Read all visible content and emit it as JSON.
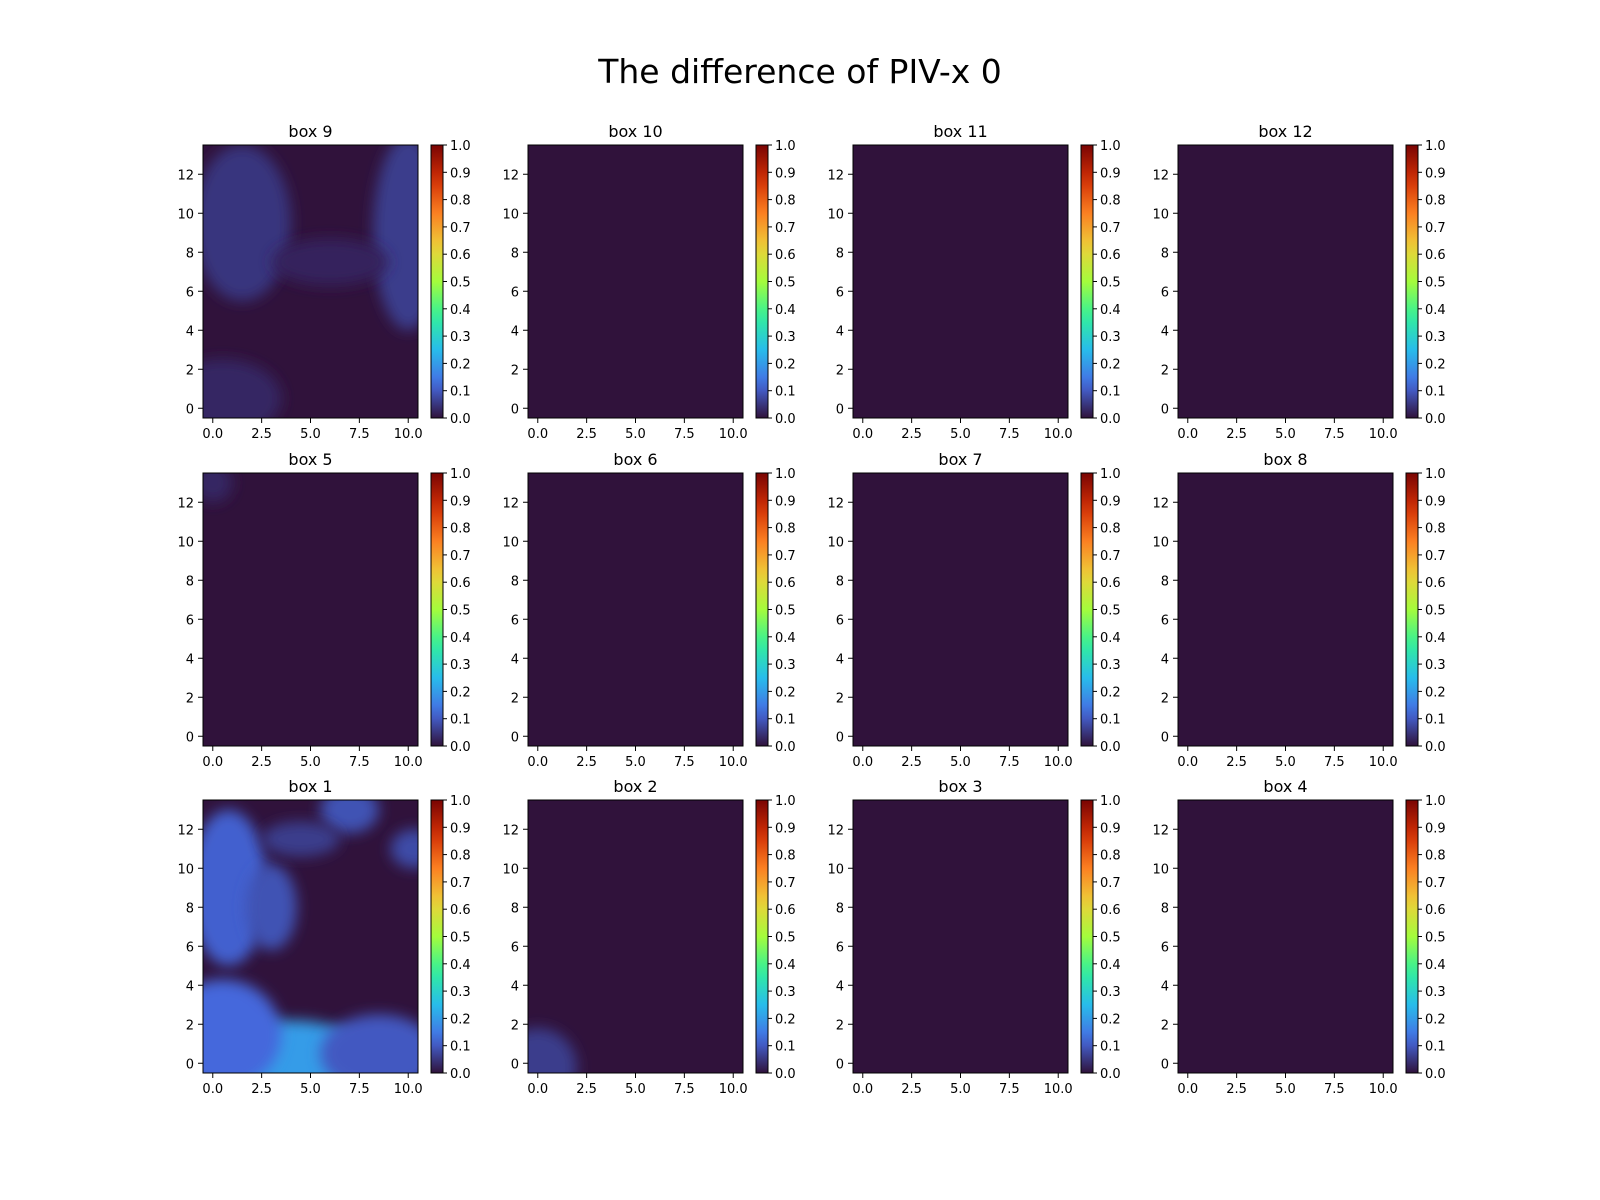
{
  "figure": {
    "title": "The difference of PIV-x 0"
  },
  "chart_data": {
    "type": "heatmap",
    "colormap": "turbo",
    "color_range": [
      0.0,
      1.0
    ],
    "colorbar_ticks": [
      "0.0",
      "0.1",
      "0.2",
      "0.3",
      "0.4",
      "0.5",
      "0.6",
      "0.7",
      "0.8",
      "0.9",
      "1.0"
    ],
    "xlim": [
      -0.5,
      10.5
    ],
    "ylim": [
      -0.5,
      13.5
    ],
    "x_ticks": [
      "0.0",
      "2.5",
      "5.0",
      "7.5",
      "10.0"
    ],
    "y_ticks": [
      "0",
      "2",
      "4",
      "6",
      "8",
      "10",
      "12"
    ],
    "grid": false,
    "panels": [
      {
        "title": "box 9",
        "row": 0,
        "col": 0,
        "blobs": [
          {
            "x": 1.5,
            "y": 9.5,
            "rx": 2.5,
            "ry": 4.0,
            "v": 0.05
          },
          {
            "x": 10.0,
            "y": 9.0,
            "rx": 1.8,
            "ry": 5.0,
            "v": 0.06
          },
          {
            "x": 0.5,
            "y": 0.5,
            "rx": 3.0,
            "ry": 2.0,
            "v": 0.03
          },
          {
            "x": 6.0,
            "y": 7.5,
            "rx": 3.0,
            "ry": 1.2,
            "v": 0.025
          }
        ]
      },
      {
        "title": "box 10",
        "row": 0,
        "col": 1,
        "blobs": []
      },
      {
        "title": "box 11",
        "row": 0,
        "col": 2,
        "blobs": []
      },
      {
        "title": "box 12",
        "row": 0,
        "col": 3,
        "blobs": []
      },
      {
        "title": "box 5",
        "row": 1,
        "col": 0,
        "blobs": [
          {
            "x": 0.0,
            "y": 13.0,
            "rx": 1.0,
            "ry": 1.0,
            "v": 0.03
          }
        ]
      },
      {
        "title": "box 6",
        "row": 1,
        "col": 1,
        "blobs": []
      },
      {
        "title": "box 7",
        "row": 1,
        "col": 2,
        "blobs": []
      },
      {
        "title": "box 8",
        "row": 1,
        "col": 3,
        "blobs": []
      },
      {
        "title": "box 1",
        "row": 2,
        "col": 0,
        "blobs": [
          {
            "x": 4.0,
            "y": -0.3,
            "rx": 4.5,
            "ry": 2.5,
            "v": 0.2
          },
          {
            "x": 0.5,
            "y": 1.5,
            "rx": 3.0,
            "ry": 2.8,
            "v": 0.12
          },
          {
            "x": 8.5,
            "y": 0.5,
            "rx": 3.0,
            "ry": 2.0,
            "v": 0.1
          },
          {
            "x": 0.8,
            "y": 9.0,
            "rx": 2.0,
            "ry": 4.0,
            "v": 0.11
          },
          {
            "x": 3.0,
            "y": 8.0,
            "rx": 1.3,
            "ry": 2.2,
            "v": 0.09
          },
          {
            "x": 7.0,
            "y": 13.0,
            "rx": 1.5,
            "ry": 1.2,
            "v": 0.09
          },
          {
            "x": 10.3,
            "y": 11.0,
            "rx": 1.2,
            "ry": 1.0,
            "v": 0.08
          },
          {
            "x": 4.5,
            "y": 11.5,
            "rx": 2.0,
            "ry": 0.9,
            "v": 0.06
          }
        ]
      },
      {
        "title": "box 2",
        "row": 2,
        "col": 1,
        "blobs": [
          {
            "x": 0.0,
            "y": -0.2,
            "rx": 2.0,
            "ry": 2.0,
            "v": 0.06
          }
        ]
      },
      {
        "title": "box 3",
        "row": 2,
        "col": 2,
        "blobs": []
      },
      {
        "title": "box 4",
        "row": 2,
        "col": 3,
        "blobs": []
      }
    ]
  }
}
